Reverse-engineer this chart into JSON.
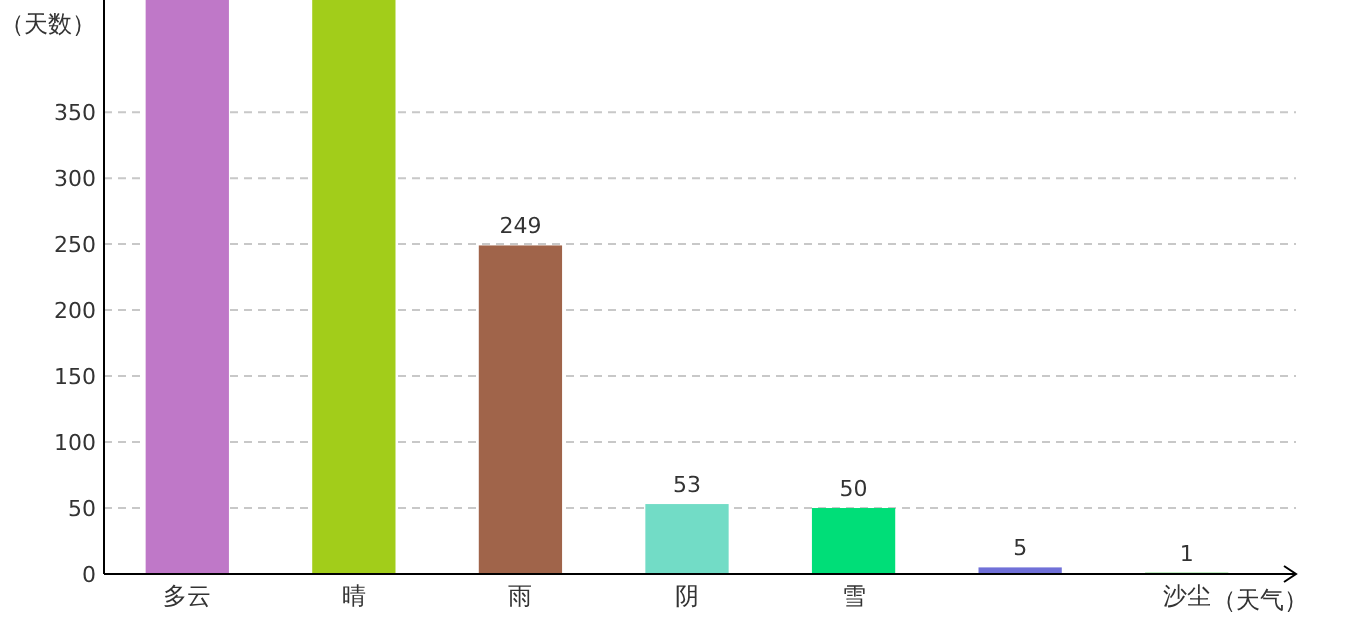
{
  "chart_data": {
    "type": "bar",
    "ylabel": "（天数）",
    "xlabel": "（天气）",
    "categories": [
      "多云",
      "晴",
      "雨",
      "阴",
      "雪",
      null,
      "沙尘"
    ],
    "values": [
      435,
      435,
      249,
      53,
      50,
      5,
      1
    ],
    "colors": [
      "#bf78c8",
      "#a2cd1a",
      "#a0644a",
      "#72dcc6",
      "#00de78",
      "#7070d8",
      "#40c040"
    ],
    "value_labels": [
      null,
      null,
      "249",
      "53",
      "50",
      "5",
      "1"
    ],
    "ylim": [
      0,
      435
    ],
    "yticks": [
      0,
      50,
      100,
      150,
      200,
      250,
      300,
      350
    ],
    "grid": "y"
  }
}
